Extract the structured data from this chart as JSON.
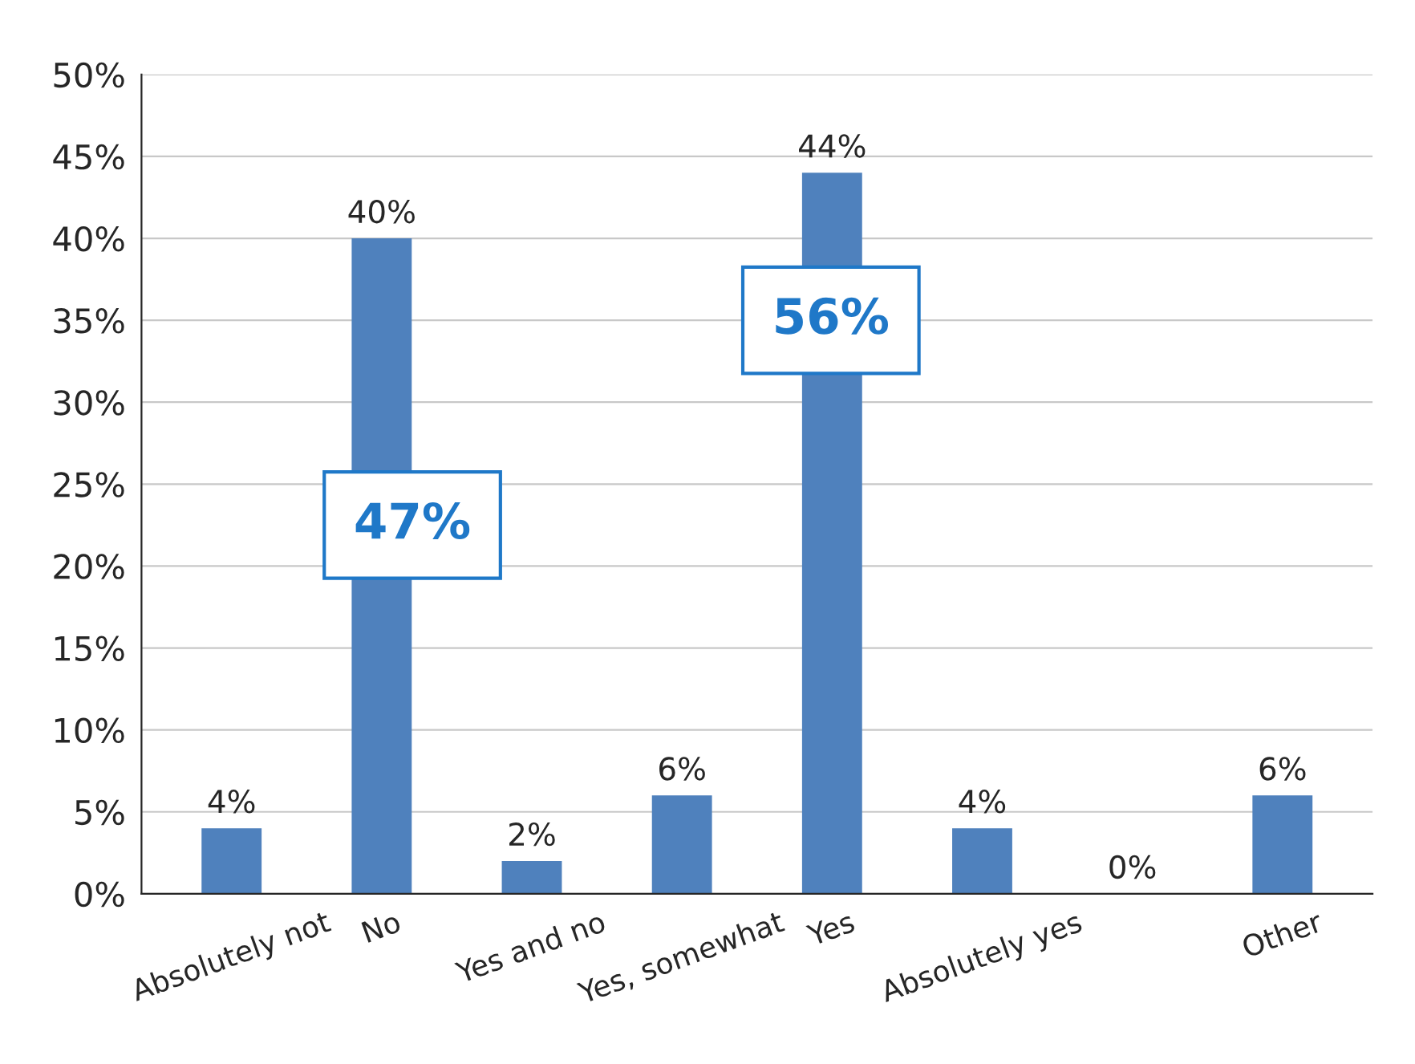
{
  "chart_data": {
    "type": "bar",
    "categories": [
      "Absolutely not",
      "No",
      "Yes and no",
      "Yes, somewhat",
      "Yes",
      "Absolutely yes",
      null,
      "Other"
    ],
    "values": [
      4,
      40,
      2,
      6,
      44,
      4,
      0,
      6
    ],
    "value_labels": [
      "4%",
      "40%",
      "2%",
      "6%",
      "44%",
      "4%",
      "0%",
      "6%"
    ],
    "color": "#4f81bd",
    "ylim": [
      0,
      50
    ],
    "yticks": [
      {
        "value": 0,
        "label": "0%"
      },
      {
        "value": 5,
        "label": "5%"
      },
      {
        "value": 10,
        "label": "10%"
      },
      {
        "value": 15,
        "label": "15%"
      },
      {
        "value": 20,
        "label": "20%"
      },
      {
        "value": 25,
        "label": "25%"
      },
      {
        "value": 30,
        "label": "30%"
      },
      {
        "value": 35,
        "label": "35%"
      },
      {
        "value": 40,
        "label": "40%"
      },
      {
        "value": 45,
        "label": "45%"
      },
      {
        "value": 50,
        "label": "50%"
      }
    ],
    "annotations": [
      "47%",
      "56%"
    ],
    "grid": "y",
    "legend": false
  }
}
